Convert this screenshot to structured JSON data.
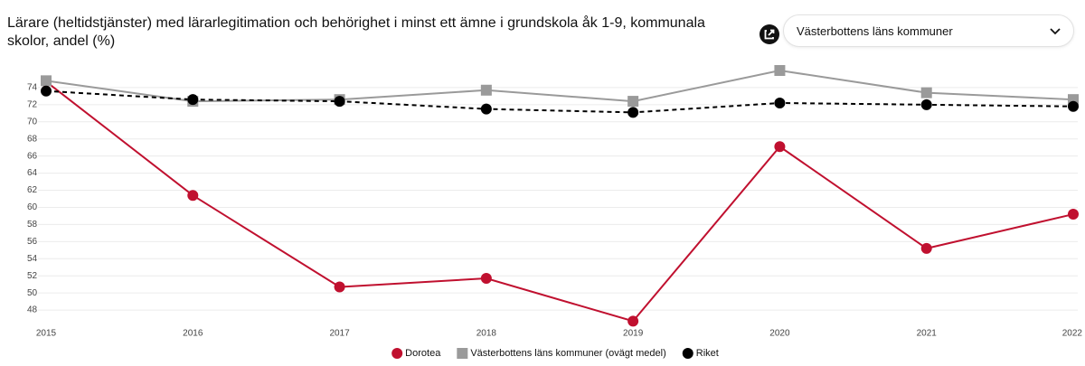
{
  "chart_data": {
    "type": "line",
    "title": "Lärare (heltidstjänster) med lärarlegitimation och behörighet i minst ett ämne i grundskola åk 1-9, kommunala skolor, andel (%)",
    "x": [
      2015,
      2016,
      2017,
      2018,
      2019,
      2020,
      2021,
      2022
    ],
    "xlim": [
      2015,
      2022
    ],
    "xticks": [
      2015,
      2016,
      2017,
      2018,
      2019,
      2020,
      2021,
      2022
    ],
    "ylim": [
      46,
      76
    ],
    "yticks": [
      48,
      50,
      52,
      54,
      56,
      58,
      60,
      62,
      64,
      66,
      68,
      70,
      72,
      74
    ],
    "grid": true,
    "legend": "bottom",
    "series": [
      {
        "name": "Dorotea",
        "color": "#c0102f",
        "marker": "circle",
        "dashed": false,
        "values": [
          74.7,
          61.4,
          50.7,
          51.7,
          46.7,
          67.1,
          55.2,
          59.2
        ]
      },
      {
        "name": "Västerbottens läns kommuner (ovägt medel)",
        "color": "#9a9a9a",
        "marker": "square",
        "dashed": false,
        "values": [
          74.8,
          72.4,
          72.6,
          73.7,
          72.4,
          76.0,
          73.4,
          72.6
        ]
      },
      {
        "name": "Riket",
        "color": "#000000",
        "marker": "circle",
        "dashed": true,
        "values": [
          73.6,
          72.6,
          72.4,
          71.5,
          71.1,
          72.2,
          72.0,
          71.8
        ]
      }
    ]
  },
  "dropdown": {
    "selected": "Västerbottens läns kommuner"
  }
}
